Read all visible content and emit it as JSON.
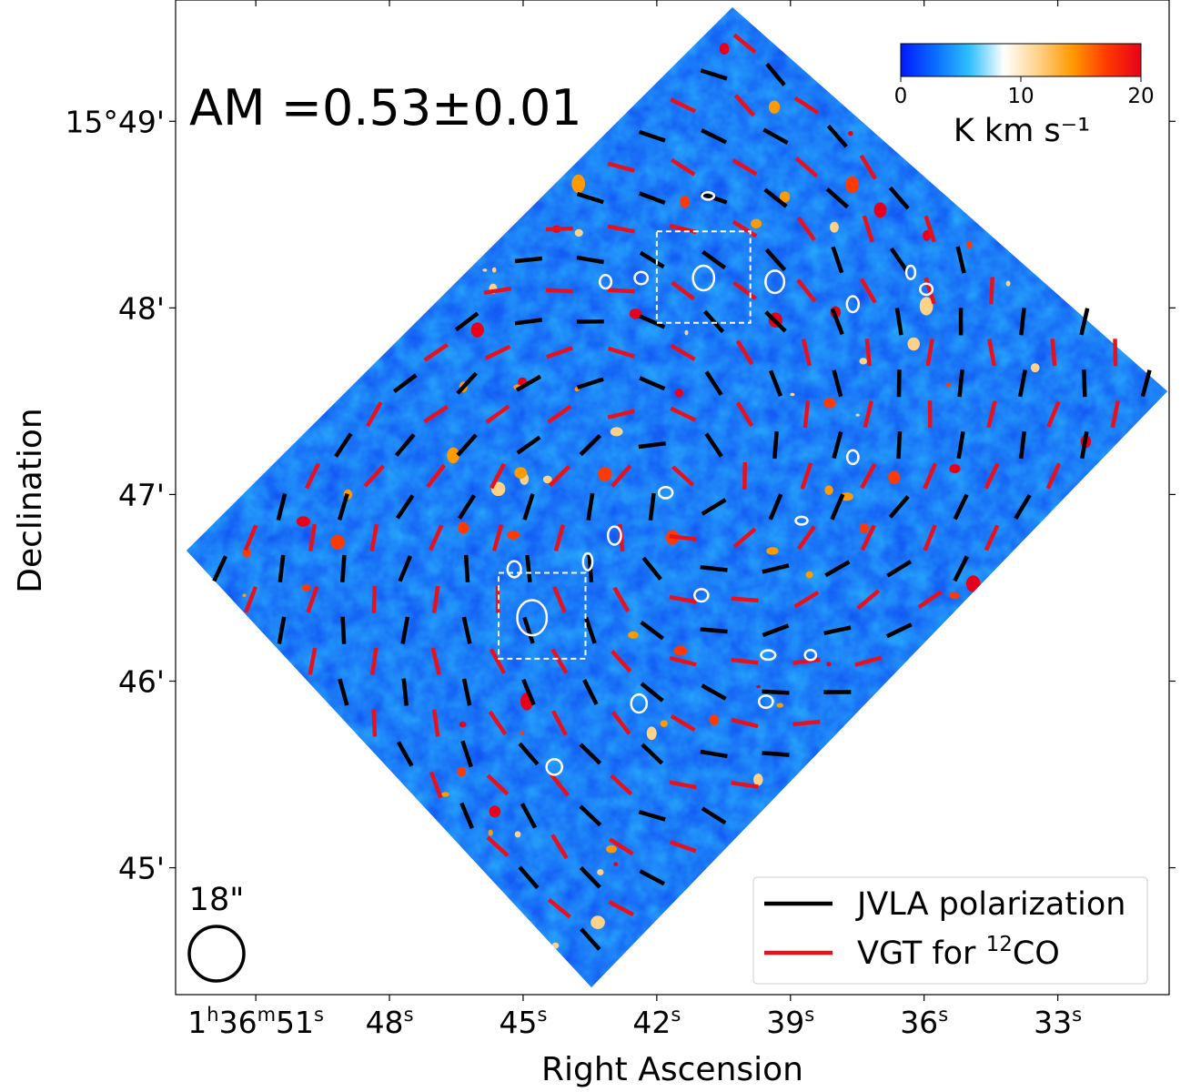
{
  "chart_data": {
    "type": "heatmap",
    "title": "",
    "annotation": "AM =0.53±0.01",
    "xlabel": "Right Ascension",
    "ylabel": "Declination",
    "x_ticks": [
      {
        "ra_s": 51,
        "label": "1h36m51s"
      },
      {
        "ra_s": 48,
        "label": "48s"
      },
      {
        "ra_s": 45,
        "label": "45s"
      },
      {
        "ra_s": 42,
        "label": "42s"
      },
      {
        "ra_s": 39,
        "label": "39s"
      },
      {
        "ra_s": 36,
        "label": "36s"
      },
      {
        "ra_s": 33,
        "label": "33s"
      }
    ],
    "x_tick_parts": [
      [
        "1",
        "h",
        "36",
        "m",
        "51",
        "s"
      ],
      [
        "48",
        "s"
      ],
      [
        "45",
        "s"
      ],
      [
        "42",
        "s"
      ],
      [
        "39",
        "s"
      ],
      [
        "36",
        "s"
      ],
      [
        "33",
        "s"
      ]
    ],
    "y_ticks": [
      {
        "dec_arcmin": 49,
        "label": "15°49'"
      },
      {
        "dec_arcmin": 48,
        "label": "48'"
      },
      {
        "dec_arcmin": 47,
        "label": "47'"
      },
      {
        "dec_arcmin": 46,
        "label": "46'"
      },
      {
        "dec_arcmin": 45,
        "label": "45'"
      }
    ],
    "xlim_ra_s": [
      52.8,
      30.5
    ],
    "ylim_dec_arcmin": [
      44.32,
      49.65
    ],
    "colorbar": {
      "label": "K km s⁻¹",
      "ticks": [
        "0",
        "10",
        "20"
      ],
      "tick_values": [
        0,
        10,
        20
      ],
      "range": [
        0,
        20
      ],
      "colors": [
        "#0019ff",
        "#0a6cff",
        "#2ec0ff",
        "#ffffff",
        "#ffd28a",
        "#ff9a00",
        "#ff3a00",
        "#e8001a"
      ]
    },
    "beam": {
      "label": "18\"",
      "size_arcsec": 18
    },
    "legend": {
      "placement": "lower-right",
      "entries": [
        {
          "label": "JVLA polarization",
          "color": "#000000"
        },
        {
          "label": "VGT for ",
          "sup": "12",
          "suffix": "CO",
          "color": "#e8111b"
        }
      ]
    },
    "map_colors": {
      "background": "#0a3cf0",
      "filaments": "#2ec0ff"
    },
    "regions": {
      "ellipse_color": "#ffffff",
      "ellipses": [
        {
          "ra_s": 40.85,
          "dec_arcmin": 48.6,
          "w_arcsec": 3.9,
          "h_arcsec": 2.4
        },
        {
          "ra_s": 43.15,
          "dec_arcmin": 48.14,
          "w_arcsec": 3.7,
          "h_arcsec": 4.3
        },
        {
          "ra_s": 42.35,
          "dec_arcmin": 48.16,
          "w_arcsec": 4.2,
          "h_arcsec": 3.9
        },
        {
          "ra_s": 40.95,
          "dec_arcmin": 48.16,
          "w_arcsec": 6.8,
          "h_arcsec": 7.9
        },
        {
          "ra_s": 39.35,
          "dec_arcmin": 48.14,
          "w_arcsec": 6.0,
          "h_arcsec": 7.2
        },
        {
          "ra_s": 37.6,
          "dec_arcmin": 48.02,
          "w_arcsec": 3.8,
          "h_arcsec": 5.1
        },
        {
          "ra_s": 36.3,
          "dec_arcmin": 48.19,
          "w_arcsec": 2.9,
          "h_arcsec": 4.3
        },
        {
          "ra_s": 35.95,
          "dec_arcmin": 48.1,
          "w_arcsec": 4.0,
          "h_arcsec": 3.6
        },
        {
          "ra_s": 37.6,
          "dec_arcmin": 47.2,
          "w_arcsec": 3.6,
          "h_arcsec": 4.4
        },
        {
          "ra_s": 41.8,
          "dec_arcmin": 47.01,
          "w_arcsec": 4.4,
          "h_arcsec": 3.6
        },
        {
          "ra_s": 38.75,
          "dec_arcmin": 46.86,
          "w_arcsec": 3.8,
          "h_arcsec": 2.5
        },
        {
          "ra_s": 42.95,
          "dec_arcmin": 46.78,
          "w_arcsec": 4.2,
          "h_arcsec": 5.8
        },
        {
          "ra_s": 43.55,
          "dec_arcmin": 46.64,
          "w_arcsec": 3.0,
          "h_arcsec": 5.5
        },
        {
          "ra_s": 45.2,
          "dec_arcmin": 46.6,
          "w_arcsec": 4.3,
          "h_arcsec": 5.2
        },
        {
          "ra_s": 44.8,
          "dec_arcmin": 46.34,
          "w_arcsec": 9.5,
          "h_arcsec": 11.3
        },
        {
          "ra_s": 41.0,
          "dec_arcmin": 46.46,
          "w_arcsec": 4.4,
          "h_arcsec": 4.0
        },
        {
          "ra_s": 39.5,
          "dec_arcmin": 46.14,
          "w_arcsec": 4.6,
          "h_arcsec": 3.0
        },
        {
          "ra_s": 38.55,
          "dec_arcmin": 46.14,
          "w_arcsec": 3.6,
          "h_arcsec": 3.2
        },
        {
          "ra_s": 42.4,
          "dec_arcmin": 45.88,
          "w_arcsec": 5.0,
          "h_arcsec": 5.8
        },
        {
          "ra_s": 39.55,
          "dec_arcmin": 45.89,
          "w_arcsec": 4.5,
          "h_arcsec": 3.9
        },
        {
          "ra_s": 44.3,
          "dec_arcmin": 45.54,
          "w_arcsec": 5.0,
          "h_arcsec": 5.0
        }
      ],
      "boxes": [
        {
          "ra_s": [
            42.0,
            39.9
          ],
          "dec_arcmin": [
            48.41,
            47.92
          ]
        },
        {
          "ra_s": [
            45.55,
            43.6
          ],
          "dec_arcmin": [
            46.58,
            46.12
          ]
        }
      ]
    }
  }
}
